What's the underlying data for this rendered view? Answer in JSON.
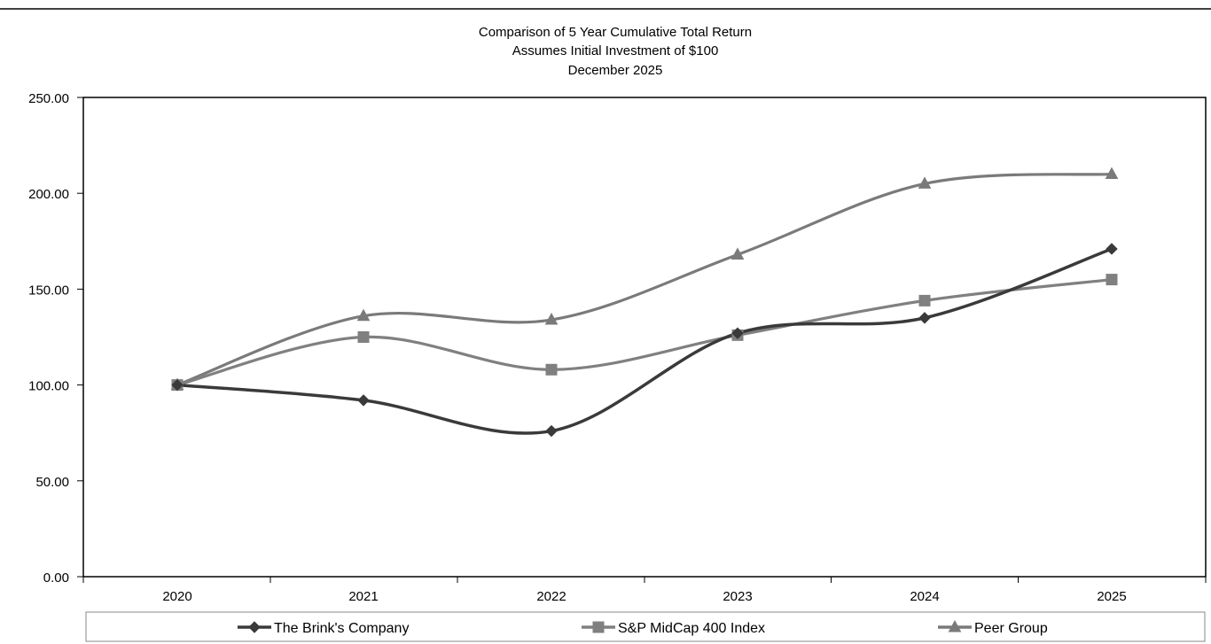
{
  "chart_data": {
    "type": "line",
    "title_lines": [
      "Comparison of 5 Year Cumulative Total Return",
      "Assumes Initial Investment of $100",
      "December 2025"
    ],
    "xlabel": "",
    "ylabel": "",
    "categories": [
      "2020",
      "2021",
      "2022",
      "2023",
      "2024",
      "2025"
    ],
    "ylim": [
      0,
      250
    ],
    "yticks": [
      0,
      50,
      100,
      150,
      200,
      250
    ],
    "ytick_labels": [
      "0.00",
      "50.00",
      "100.00",
      "150.00",
      "200.00",
      "250.00"
    ],
    "grid": false,
    "legend_position": "bottom",
    "series": [
      {
        "name": "The Brink's Company",
        "values": [
          100,
          92,
          76,
          127,
          135,
          171
        ],
        "marker": "diamond",
        "color": "#3a3a3a"
      },
      {
        "name": "S&P MidCap 400 Index",
        "values": [
          100,
          125,
          108,
          126,
          144,
          155
        ],
        "marker": "square",
        "color": "#808080"
      },
      {
        "name": "Peer Group",
        "values": [
          100,
          136,
          134,
          168,
          205,
          210
        ],
        "marker": "triangle",
        "color": "#7a7a7a"
      }
    ]
  }
}
